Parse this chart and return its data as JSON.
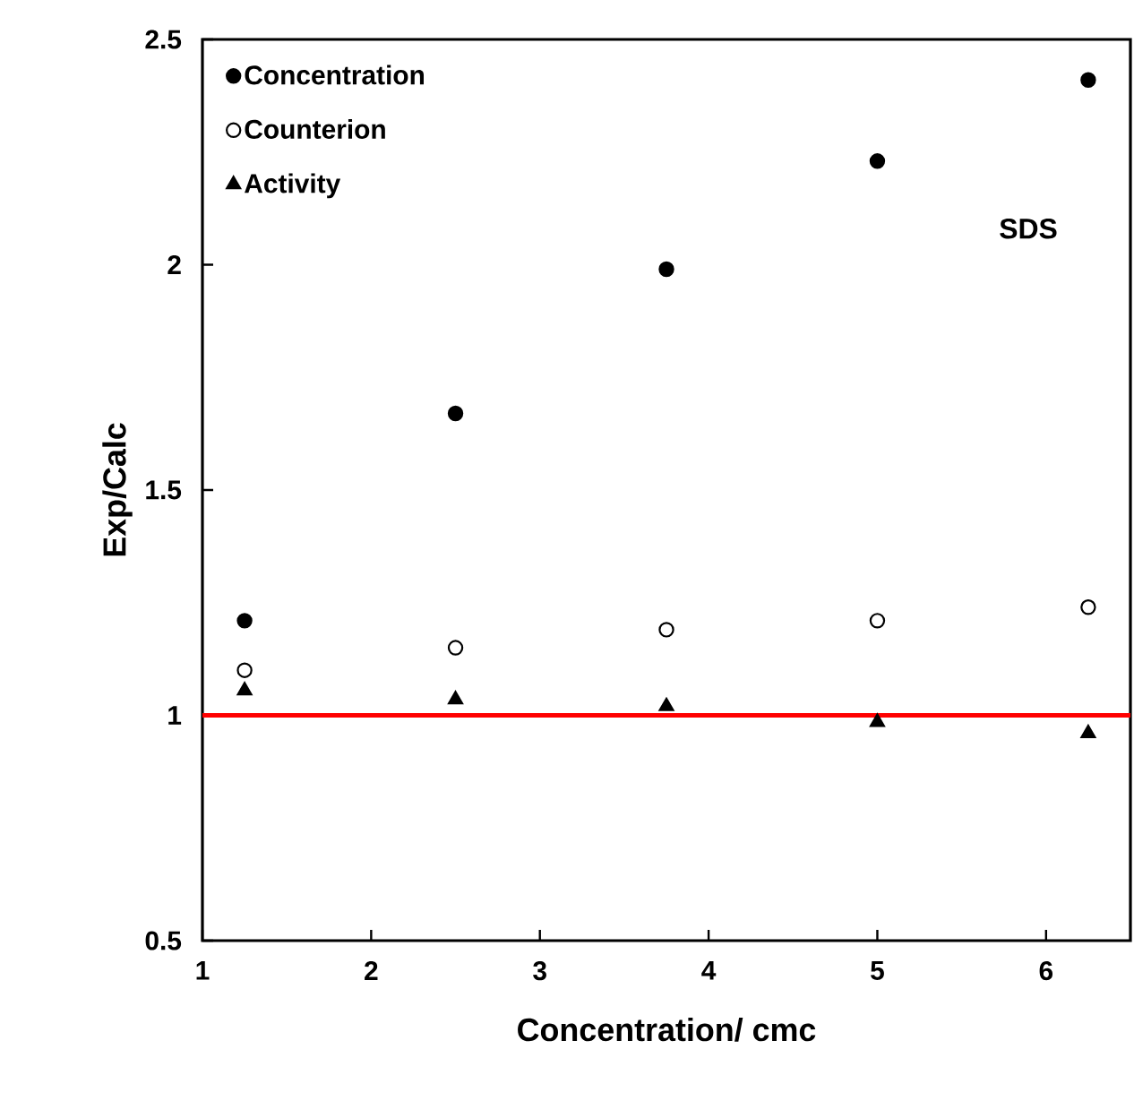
{
  "chart_data": {
    "type": "scatter",
    "xlabel": "Concentration/ cmc",
    "ylabel": "Exp/Calc",
    "xlim": [
      1,
      6.5
    ],
    "xticks": [
      1,
      2,
      3,
      4,
      5,
      6
    ],
    "ylim": [
      0.5,
      2.5
    ],
    "yticks": [
      0.5,
      1,
      1.5,
      2,
      2.5
    ],
    "grid": false,
    "legend": "top left",
    "x": [
      1.25,
      2.5,
      3.75,
      5,
      6.25
    ],
    "series": [
      {
        "name": "Concentration",
        "color": "#000000",
        "marker": "circle",
        "values": [
          1.21,
          1.67,
          1.99,
          2.23,
          2.41
        ]
      },
      {
        "name": "Counterion",
        "color": "#ffffff",
        "marker": "circle",
        "values": [
          1.1,
          1.15,
          1.19,
          1.21,
          1.24
        ]
      },
      {
        "name": "Activity",
        "color": "#000000",
        "marker": "triangle",
        "values": [
          1.055,
          1.035,
          1.02,
          0.985,
          0.96
        ]
      }
    ],
    "ref_lines": [
      {
        "axis": "y",
        "value": 1,
        "color": "#ff0000"
      }
    ],
    "annotations": [
      "SDS"
    ]
  }
}
